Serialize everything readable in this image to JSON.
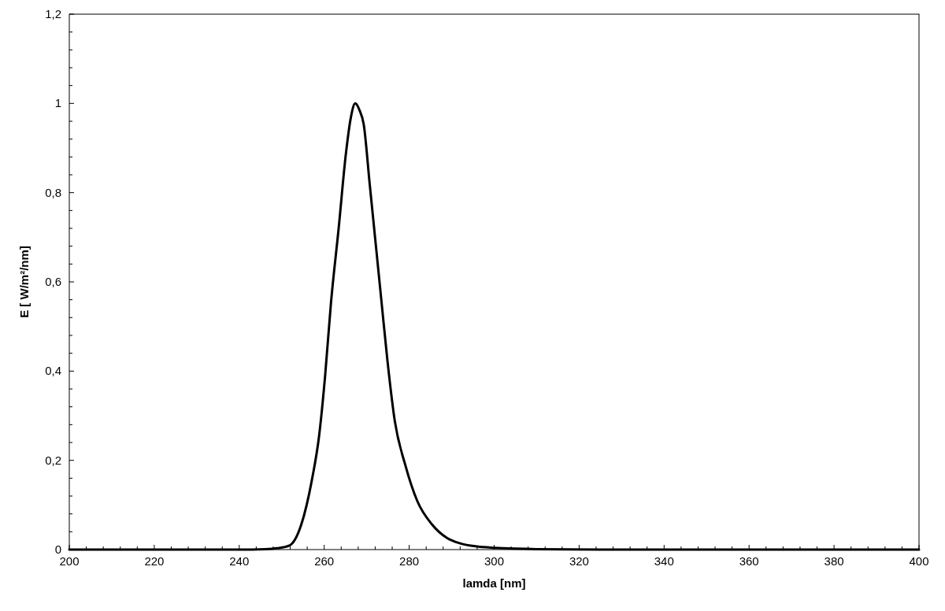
{
  "chart_data": {
    "type": "line",
    "xlabel": "lamda [nm]",
    "ylabel": "E [ W/m²/nm]",
    "x": [
      200,
      240,
      246,
      248.9,
      251.8,
      254.6,
      257.1,
      258.8,
      260.2,
      261.6,
      263.4,
      265.1,
      266.3,
      267.3,
      268.3,
      269.3,
      270.7,
      272.1,
      273.5,
      274.9,
      276.6,
      279.1,
      281.9,
      285.4,
      288.9,
      292,
      296,
      300,
      305,
      310,
      330,
      360,
      400
    ],
    "series": [
      {
        "color": "#000000",
        "values": [
          0,
          0,
          0.001,
          0.003,
          0.009,
          0.056,
          0.156,
          0.255,
          0.388,
          0.554,
          0.72,
          0.887,
          0.97,
          1.0,
          0.985,
          0.953,
          0.82,
          0.687,
          0.554,
          0.422,
          0.289,
          0.189,
          0.109,
          0.056,
          0.026,
          0.014,
          0.007,
          0.004,
          0.002,
          0.001,
          0,
          0,
          0
        ]
      }
    ],
    "xlim": [
      200,
      400
    ],
    "xticks": [
      200,
      {
        "value": 204,
        "label": null
      },
      {
        "value": 208,
        "label": null
      },
      {
        "value": 212,
        "label": null
      },
      {
        "value": 216,
        "label": null
      },
      220,
      {
        "value": 224,
        "label": null
      },
      {
        "value": 228,
        "label": null
      },
      {
        "value": 232,
        "label": null
      },
      {
        "value": 236,
        "label": null
      },
      240,
      {
        "value": 244,
        "label": null
      },
      {
        "value": 248,
        "label": null
      },
      {
        "value": 252,
        "label": null
      },
      {
        "value": 256,
        "label": null
      },
      260,
      {
        "value": 264,
        "label": null
      },
      {
        "value": 268,
        "label": null
      },
      {
        "value": 272,
        "label": null
      },
      {
        "value": 276,
        "label": null
      },
      280,
      {
        "value": 284,
        "label": null
      },
      {
        "value": 288,
        "label": null
      },
      {
        "value": 292,
        "label": null
      },
      {
        "value": 296,
        "label": null
      },
      300,
      {
        "value": 304,
        "label": null
      },
      {
        "value": 308,
        "label": null
      },
      {
        "value": 312,
        "label": null
      },
      {
        "value": 316,
        "label": null
      },
      320,
      {
        "value": 324,
        "label": null
      },
      {
        "value": 328,
        "label": null
      },
      {
        "value": 332,
        "label": null
      },
      {
        "value": 336,
        "label": null
      },
      340,
      {
        "value": 344,
        "label": null
      },
      {
        "value": 348,
        "label": null
      },
      {
        "value": 352,
        "label": null
      },
      {
        "value": 356,
        "label": null
      },
      360,
      {
        "value": 364,
        "label": null
      },
      {
        "value": 368,
        "label": null
      },
      {
        "value": 372,
        "label": null
      },
      {
        "value": 376,
        "label": null
      },
      380,
      {
        "value": 384,
        "label": null
      },
      {
        "value": 388,
        "label": null
      },
      {
        "value": 392,
        "label": null
      },
      {
        "value": 396,
        "label": null
      },
      400
    ],
    "ylim": [
      0,
      1.2
    ],
    "yticks": [
      0,
      {
        "value": 0.04,
        "label": null
      },
      {
        "value": 0.08,
        "label": null
      },
      {
        "value": 0.12,
        "label": null
      },
      {
        "value": 0.16,
        "label": null
      },
      {
        "value": 0.2,
        "label": "0,2"
      },
      {
        "value": 0.24,
        "label": null
      },
      {
        "value": 0.28,
        "label": null
      },
      {
        "value": 0.32,
        "label": null
      },
      {
        "value": 0.36,
        "label": null
      },
      {
        "value": 0.4,
        "label": "0,4"
      },
      {
        "value": 0.44,
        "label": null
      },
      {
        "value": 0.48,
        "label": null
      },
      {
        "value": 0.52,
        "label": null
      },
      {
        "value": 0.56,
        "label": null
      },
      {
        "value": 0.6,
        "label": "0,6"
      },
      {
        "value": 0.64,
        "label": null
      },
      {
        "value": 0.68,
        "label": null
      },
      {
        "value": 0.72,
        "label": null
      },
      {
        "value": 0.76,
        "label": null
      },
      {
        "value": 0.8,
        "label": "0,8"
      },
      {
        "value": 0.84,
        "label": null
      },
      {
        "value": 0.88,
        "label": null
      },
      {
        "value": 0.92,
        "label": null
      },
      {
        "value": 0.96,
        "label": null
      },
      1,
      {
        "value": 1.04,
        "label": null
      },
      {
        "value": 1.08,
        "label": null
      },
      {
        "value": 1.12,
        "label": null
      },
      {
        "value": 1.16,
        "label": null
      },
      {
        "value": 1.2,
        "label": "1,2"
      }
    ],
    "marker": "none",
    "line_style": "solid"
  }
}
